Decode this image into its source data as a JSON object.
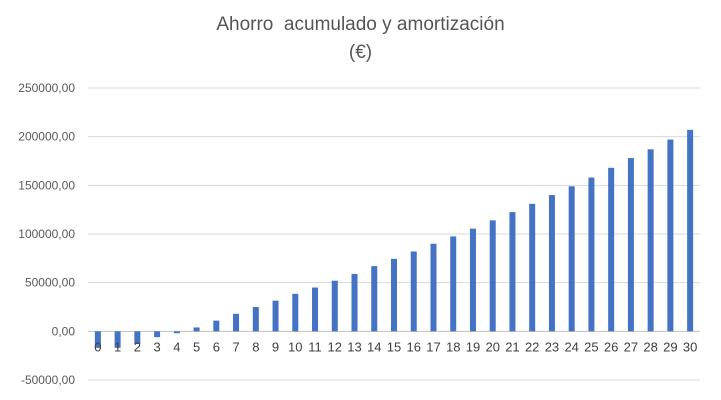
{
  "chart_data": {
    "type": "bar",
    "title_line1": "Ahorro  acumulado y amortización",
    "title_line2": "(€)",
    "xlabel": "",
    "ylabel": "",
    "ylim": [
      -50000,
      250000
    ],
    "y_ticks": [
      -50000,
      0,
      50000,
      100000,
      150000,
      200000,
      250000
    ],
    "y_tick_labels": [
      "-50000,00",
      "0,00",
      "50000,00",
      "100000,00",
      "150000,00",
      "200000,00",
      "250000,00"
    ],
    "grid": true,
    "legend": "none",
    "bar_color": "#4472C4",
    "categories": [
      "0",
      "1",
      "2",
      "3",
      "4",
      "5",
      "6",
      "7",
      "8",
      "9",
      "10",
      "11",
      "12",
      "13",
      "14",
      "15",
      "16",
      "17",
      "18",
      "19",
      "20",
      "21",
      "22",
      "23",
      "24",
      "25",
      "26",
      "27",
      "28",
      "29",
      "30"
    ],
    "values": [
      -17000,
      -17000,
      -13000,
      -6000,
      -2000,
      4000,
      11000,
      18000,
      25000,
      31500,
      38500,
      45000,
      52000,
      59000,
      67000,
      74500,
      82000,
      90000,
      97500,
      105500,
      114000,
      122500,
      131000,
      140000,
      149000,
      158000,
      168000,
      178000,
      187000,
      197000,
      207000
    ]
  }
}
